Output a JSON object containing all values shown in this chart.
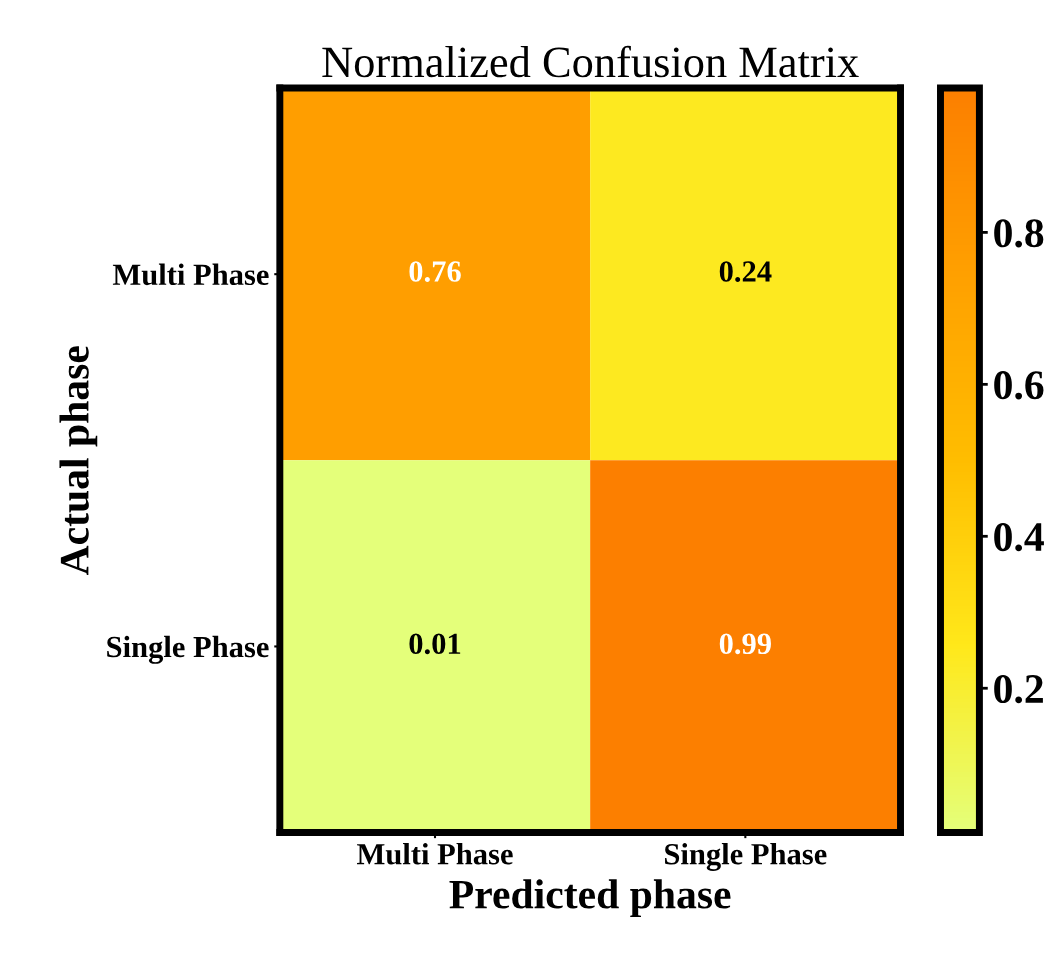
{
  "chart_data": {
    "type": "heatmap",
    "title": "Normalized Confusion Matrix",
    "xlabel": "Predicted phase",
    "ylabel": "Actual phase",
    "categories": [
      "Multi Phase",
      "Single Phase"
    ],
    "y_categories": [
      "Multi Phase",
      "Single Phase"
    ],
    "cells": [
      [
        0.76,
        0.24
      ],
      [
        0.01,
        0.99
      ]
    ],
    "clim": [
      0.01,
      0.99
    ],
    "cticks": [
      0.2,
      0.4,
      0.6,
      0.8
    ],
    "data_labels": true
  }
}
